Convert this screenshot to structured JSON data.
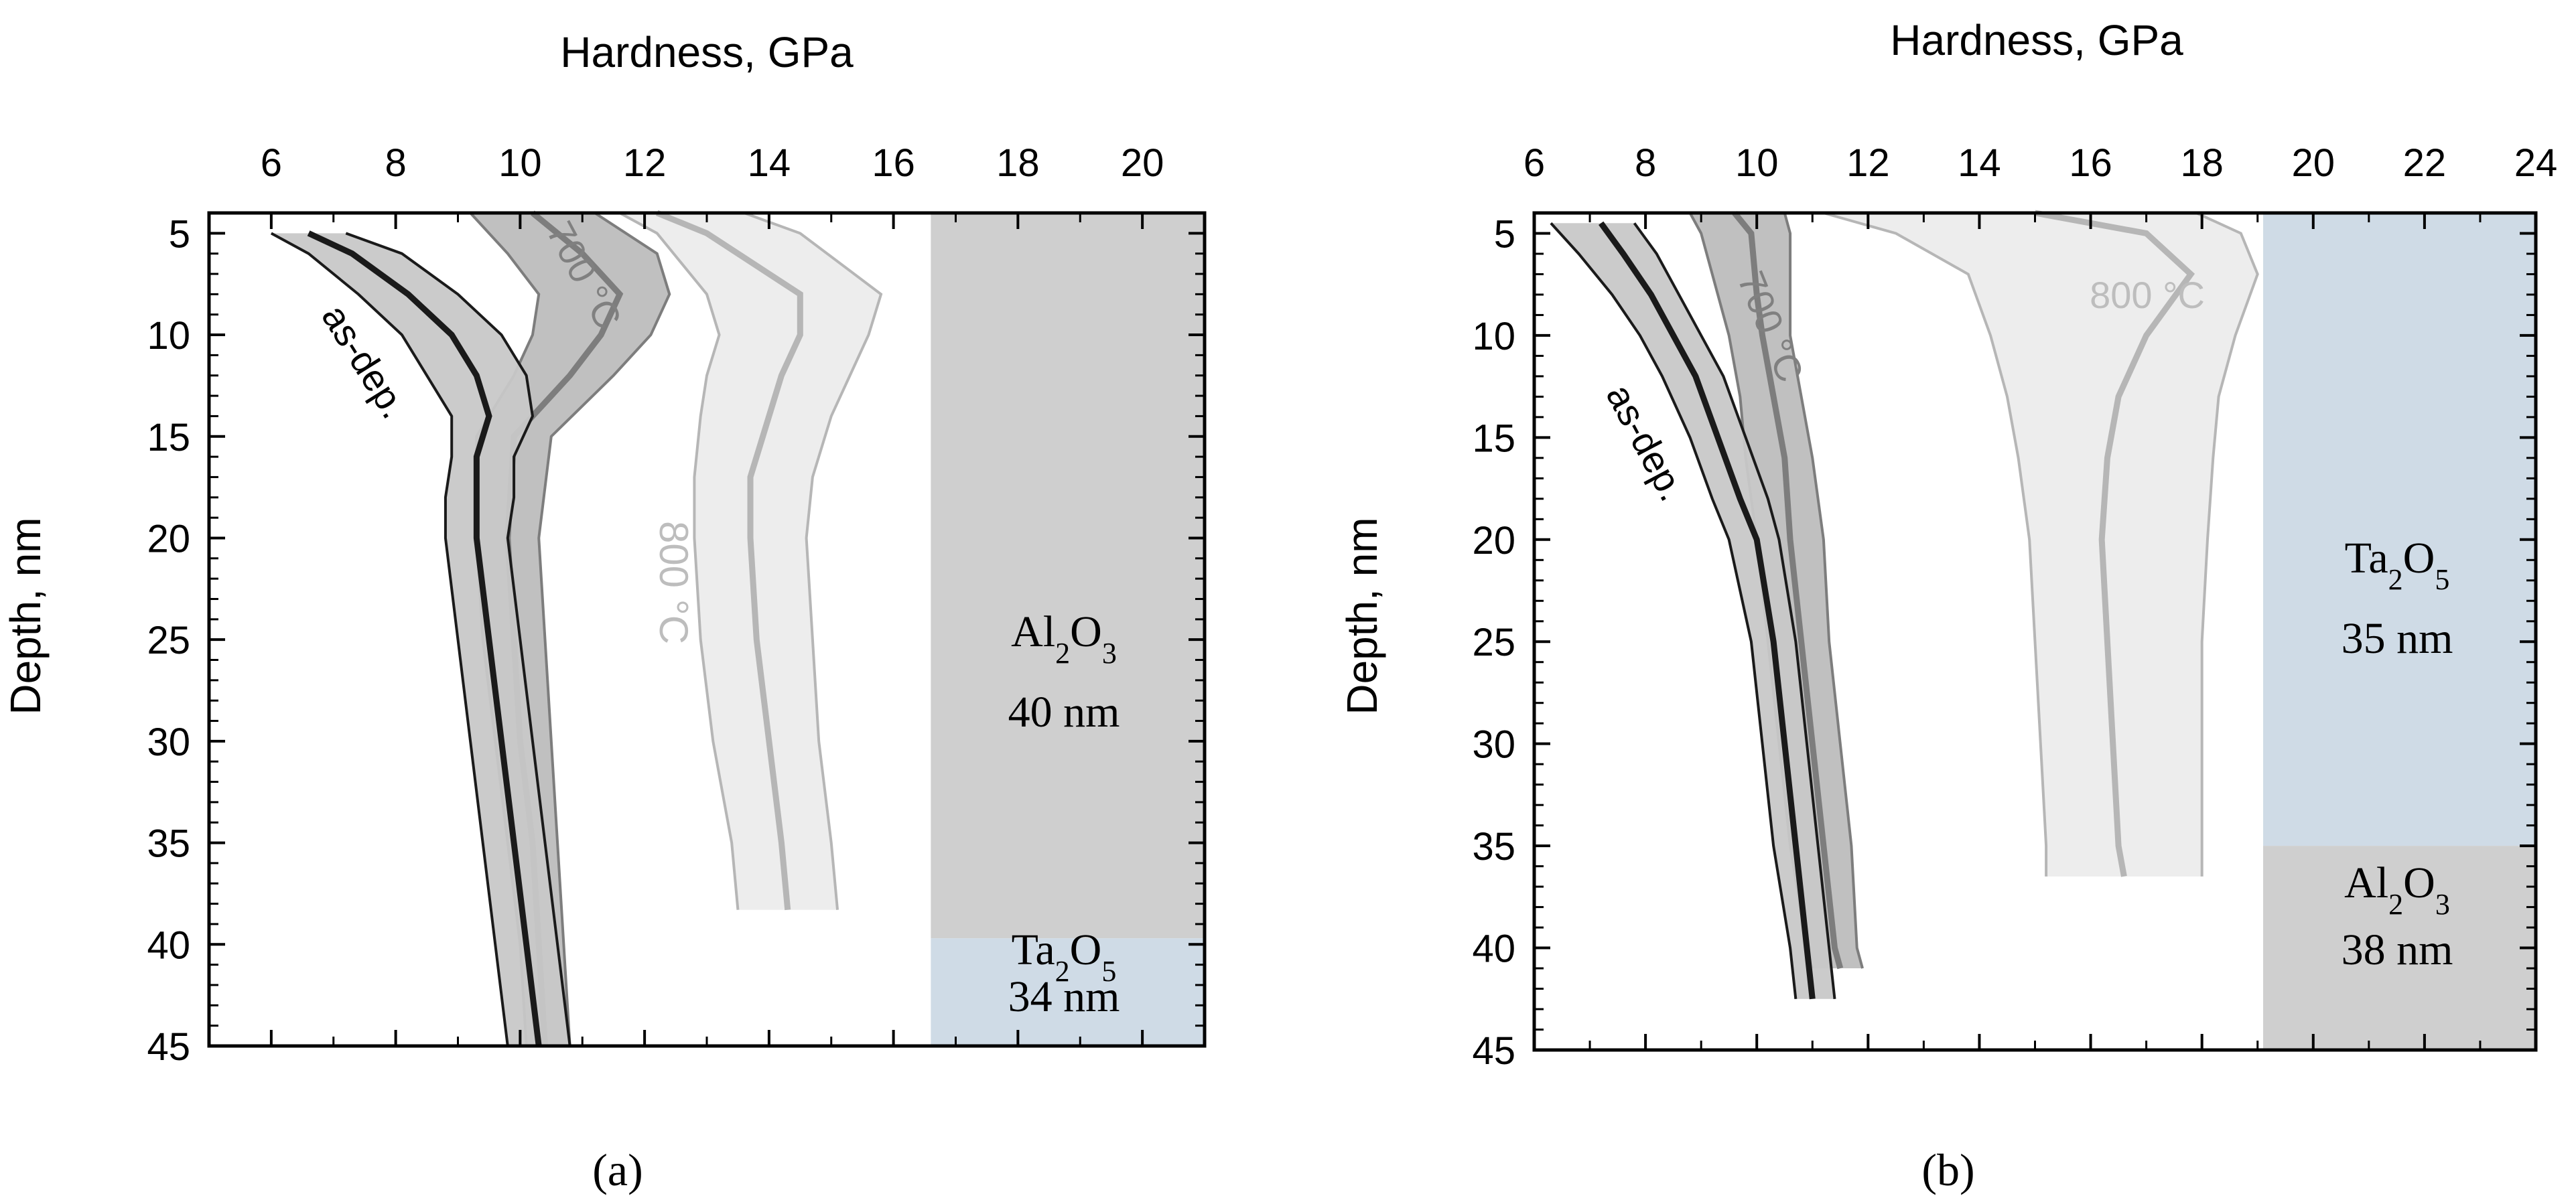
{
  "figure": {
    "panels": [
      "(a)",
      "(b)"
    ]
  },
  "colors": {
    "axis": "#000000",
    "as_dep_line": "#1a1a1a",
    "as_dep_band": "#c8c8c8",
    "c700_line": "#7d7d7d",
    "c700_band": "#bdbdbd",
    "c800_line": "#b6b6b6",
    "c800_band": "#ececec",
    "al2o3_layer": "#cfcfcf",
    "ta2o5_layer": "#cfdbe6",
    "label_700": "#808080",
    "label_800": "#bdbdbd"
  },
  "chart_data": [
    {
      "panel": "(a)",
      "type": "line",
      "xlabel": "Hardness, GPa",
      "ylabel": "Depth, nm",
      "xlim": [
        5,
        21
      ],
      "ylim": [
        4,
        45
      ],
      "x_ticks": [
        6,
        8,
        10,
        12,
        14,
        16,
        18,
        20
      ],
      "y_ticks": [
        5,
        10,
        15,
        20,
        25,
        30,
        35,
        40,
        45
      ],
      "layers": [
        {
          "formula": "Al2O3",
          "thickness": "40 nm",
          "x_from": 16.6,
          "depth_from": 4,
          "depth_to": 39.7,
          "fill": "al2o3_layer"
        },
        {
          "formula": "Ta2O5",
          "thickness": "34 nm",
          "x_from": 16.6,
          "depth_from": 39.7,
          "depth_to": 45,
          "fill": "ta2o5_layer"
        }
      ],
      "series": [
        {
          "name": "800 °C",
          "label": "800 °C",
          "color": "c800_line",
          "band": "c800_band",
          "depth": [
            4,
            5,
            8,
            10,
            12,
            14,
            17,
            20,
            25,
            30,
            35,
            38.3
          ],
          "mean": [
            12.2,
            13.0,
            14.5,
            14.5,
            14.2,
            14.0,
            13.7,
            13.7,
            13.8,
            14.0,
            14.2,
            14.3
          ],
          "lower": [
            11.6,
            12.2,
            13.0,
            13.2,
            13.0,
            12.9,
            12.8,
            12.8,
            12.9,
            13.1,
            13.4,
            13.5
          ],
          "upper": [
            13.6,
            14.5,
            15.8,
            15.6,
            15.3,
            15.0,
            14.7,
            14.6,
            14.7,
            14.8,
            15.0,
            15.1
          ]
        },
        {
          "name": "700 °C",
          "label": "700 °C",
          "color": "c700_line",
          "band": "c700_band",
          "depth": [
            4,
            6,
            8,
            10,
            12,
            15,
            20,
            25,
            30,
            35,
            40,
            45
          ],
          "mean": [
            10.2,
            11.0,
            11.6,
            11.3,
            10.8,
            9.9,
            9.8,
            9.9,
            10.0,
            10.2,
            10.3,
            10.4
          ],
          "lower": [
            9.2,
            9.8,
            10.3,
            10.2,
            9.9,
            9.3,
            9.3,
            9.4,
            9.6,
            9.8,
            10.0,
            10.1
          ],
          "upper": [
            11.2,
            12.2,
            12.4,
            12.1,
            11.5,
            10.5,
            10.3,
            10.4,
            10.5,
            10.6,
            10.7,
            10.8
          ]
        },
        {
          "name": "as-dep.",
          "label": "as-dep.",
          "color": "as_dep_line",
          "band": "as_dep_band",
          "depth": [
            5,
            6,
            8,
            10,
            12,
            14,
            16,
            18,
            20,
            25,
            30,
            35,
            40,
            45
          ],
          "mean": [
            6.6,
            7.3,
            8.2,
            8.9,
            9.3,
            9.5,
            9.3,
            9.3,
            9.3,
            9.5,
            9.7,
            9.9,
            10.1,
            10.3
          ],
          "lower": [
            6.0,
            6.6,
            7.4,
            8.1,
            8.5,
            8.9,
            8.9,
            8.8,
            8.8,
            9.0,
            9.2,
            9.4,
            9.6,
            9.8
          ],
          "upper": [
            7.2,
            8.1,
            9.0,
            9.7,
            10.1,
            10.2,
            9.9,
            9.9,
            9.8,
            10.0,
            10.2,
            10.4,
            10.6,
            10.8
          ]
        }
      ],
      "layer_text": [
        {
          "formula": "Al2O3",
          "thickness": "40 nm"
        },
        {
          "formula": "Ta2O5",
          "thickness": "34 nm"
        }
      ]
    },
    {
      "panel": "(b)",
      "type": "line",
      "xlabel": "Hardness, GPa",
      "ylabel": "Depth, nm",
      "xlim": [
        6,
        24
      ],
      "ylim": [
        4,
        45
      ],
      "x_ticks": [
        6,
        8,
        10,
        12,
        14,
        16,
        18,
        20,
        22,
        24
      ],
      "y_ticks": [
        5,
        10,
        15,
        20,
        25,
        30,
        35,
        40,
        45
      ],
      "layers": [
        {
          "formula": "Ta2O5",
          "thickness": "35 nm",
          "x_from": 19.1,
          "depth_from": 4,
          "depth_to": 35,
          "fill": "ta2o5_layer"
        },
        {
          "formula": "Al2O3",
          "thickness": "38 nm",
          "x_from": 19.1,
          "depth_from": 35,
          "depth_to": 45,
          "fill": "al2o3_layer"
        }
      ],
      "series": [
        {
          "name": "800 °C",
          "label": "800 °C",
          "color": "c800_line",
          "band": "c800_band",
          "depth": [
            4,
            5,
            7,
            10,
            13,
            16,
            20,
            25,
            30,
            35,
            36.5
          ],
          "mean": [
            15.0,
            17.0,
            17.8,
            17.0,
            16.5,
            16.3,
            16.2,
            16.3,
            16.4,
            16.5,
            16.6
          ],
          "lower": [
            11.2,
            12.5,
            13.8,
            14.2,
            14.5,
            14.7,
            14.9,
            15.0,
            15.1,
            15.2,
            15.2
          ],
          "upper": [
            17.9,
            18.7,
            19.0,
            18.6,
            18.3,
            18.2,
            18.1,
            18.0,
            18.0,
            18.0,
            18.0
          ]
        },
        {
          "name": "700 °C",
          "label": "700 °C",
          "color": "c700_line",
          "band": "c700_band",
          "depth": [
            4,
            5,
            8,
            10,
            13,
            16,
            20,
            25,
            30,
            35,
            40,
            41
          ],
          "mean": [
            9.6,
            9.9,
            10.0,
            10.1,
            10.3,
            10.5,
            10.6,
            10.8,
            11.0,
            11.2,
            11.4,
            11.5
          ],
          "lower": [
            8.8,
            9.0,
            9.3,
            9.5,
            9.7,
            9.8,
            10.0,
            10.2,
            10.4,
            10.6,
            10.9,
            11.0
          ],
          "upper": [
            10.5,
            10.6,
            10.6,
            10.6,
            10.8,
            11.0,
            11.2,
            11.3,
            11.5,
            11.7,
            11.8,
            11.9
          ]
        },
        {
          "name": "as-dep.",
          "label": "as-dep.",
          "color": "as_dep_line",
          "band": "as_dep_band",
          "depth": [
            4.5,
            6,
            8,
            10,
            12,
            15,
            18,
            20,
            25,
            30,
            35,
            40,
            42.5
          ],
          "mean": [
            7.2,
            7.6,
            8.1,
            8.5,
            8.9,
            9.3,
            9.7,
            10.0,
            10.3,
            10.5,
            10.7,
            10.9,
            11.0
          ],
          "lower": [
            6.3,
            6.8,
            7.4,
            7.9,
            8.3,
            8.8,
            9.2,
            9.5,
            9.9,
            10.1,
            10.3,
            10.6,
            10.7
          ],
          "upper": [
            7.8,
            8.2,
            8.6,
            9.0,
            9.4,
            9.8,
            10.2,
            10.4,
            10.7,
            10.9,
            11.1,
            11.3,
            11.4
          ]
        }
      ],
      "layer_text": [
        {
          "formula": "Ta2O5",
          "thickness": "35 nm"
        },
        {
          "formula": "Al2O3",
          "thickness": "38 nm"
        }
      ]
    }
  ]
}
